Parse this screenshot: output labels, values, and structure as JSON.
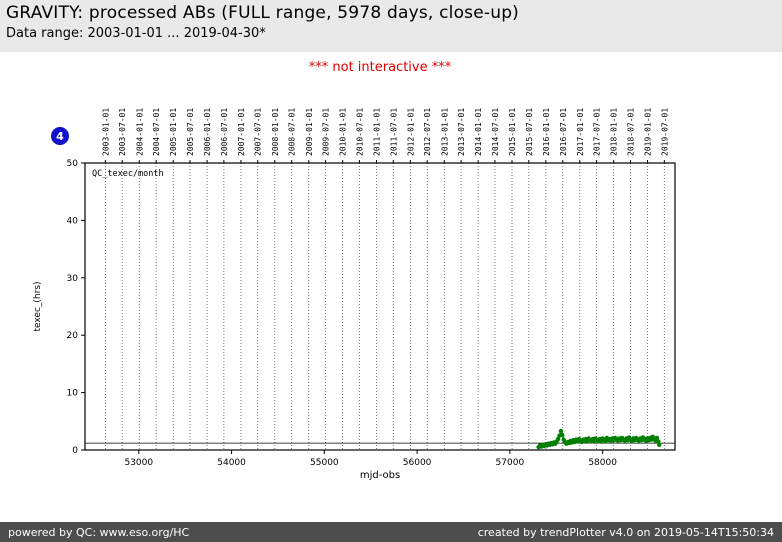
{
  "header": {
    "title": "GRAVITY: processed ABs (FULL range, 5978 days, close-up)",
    "subtitle": "Data range: 2003-01-01 ... 2019-04-30*"
  },
  "notice": "*** not interactive ***",
  "badge": {
    "label": "4",
    "color": "#1111cc"
  },
  "chart_data": {
    "type": "scatter",
    "legend": "QC_texec/month",
    "legend_position": "top-left-inside",
    "xlabel": "mjd-obs",
    "ylabel": "texec_(hrs)",
    "xlim": [
      52420,
      58780
    ],
    "ylim": [
      0,
      50
    ],
    "x_ticks": [
      53000,
      54000,
      55000,
      56000,
      57000,
      58000
    ],
    "y_ticks": [
      0,
      10,
      20,
      30,
      40,
      50
    ],
    "grid": "dotted vertical gridlines at each half-year date",
    "reference_line_y": 1.2,
    "top_axis_labels": [
      "2003-01-01",
      "2003-07-01",
      "2004-01-01",
      "2004-07-01",
      "2005-01-01",
      "2005-07-01",
      "2006-01-01",
      "2006-07-01",
      "2007-01-01",
      "2007-07-01",
      "2008-01-01",
      "2008-07-01",
      "2009-01-01",
      "2009-07-01",
      "2010-01-01",
      "2010-07-01",
      "2011-01-01",
      "2011-07-01",
      "2012-01-01",
      "2012-07-01",
      "2013-01-01",
      "2013-07-01",
      "2014-01-01",
      "2014-07-01",
      "2015-01-01",
      "2015-07-01",
      "2016-01-01",
      "2016-07-01",
      "2017-01-01",
      "2017-07-01",
      "2018-01-01",
      "2018-07-01",
      "2019-01-01",
      "2019-07-01"
    ],
    "series": [
      {
        "name": "QC_texec/month",
        "color": "#008000",
        "marker": "circle",
        "points": [
          [
            57310,
            0.5
          ],
          [
            57325,
            0.8
          ],
          [
            57340,
            0.6
          ],
          [
            57355,
            0.9
          ],
          [
            57370,
            0.7
          ],
          [
            57385,
            1.0
          ],
          [
            57400,
            0.8
          ],
          [
            57415,
            1.1
          ],
          [
            57430,
            0.9
          ],
          [
            57445,
            1.2
          ],
          [
            57460,
            1.0
          ],
          [
            57475,
            1.3
          ],
          [
            57490,
            1.1
          ],
          [
            57505,
            1.5
          ],
          [
            57520,
            1.9
          ],
          [
            57535,
            2.5
          ],
          [
            57550,
            3.3
          ],
          [
            57565,
            2.6
          ],
          [
            57580,
            1.8
          ],
          [
            57595,
            1.3
          ],
          [
            57610,
            1.1
          ],
          [
            57625,
            1.4
          ],
          [
            57640,
            1.2
          ],
          [
            57655,
            1.6
          ],
          [
            57670,
            1.3
          ],
          [
            57685,
            1.7
          ],
          [
            57700,
            1.4
          ],
          [
            57715,
            1.8
          ],
          [
            57730,
            1.5
          ],
          [
            57745,
            1.9
          ],
          [
            57760,
            1.6
          ],
          [
            57775,
            1.4
          ],
          [
            57790,
            1.8
          ],
          [
            57805,
            1.5
          ],
          [
            57820,
            1.9
          ],
          [
            57835,
            1.6
          ],
          [
            57850,
            2.0
          ],
          [
            57865,
            1.7
          ],
          [
            57880,
            1.5
          ],
          [
            57895,
            1.9
          ],
          [
            57910,
            1.6
          ],
          [
            57925,
            2.0
          ],
          [
            57940,
            1.7
          ],
          [
            57955,
            1.5
          ],
          [
            57970,
            1.9
          ],
          [
            57985,
            1.6
          ],
          [
            58000,
            2.0
          ],
          [
            58015,
            1.8
          ],
          [
            58030,
            1.5
          ],
          [
            58045,
            2.1
          ],
          [
            58060,
            1.7
          ],
          [
            58075,
            1.9
          ],
          [
            58090,
            1.6
          ],
          [
            58105,
            2.0
          ],
          [
            58120,
            1.7
          ],
          [
            58135,
            2.1
          ],
          [
            58150,
            1.8
          ],
          [
            58165,
            1.6
          ],
          [
            58180,
            2.0
          ],
          [
            58195,
            1.7
          ],
          [
            58210,
            2.1
          ],
          [
            58225,
            1.8
          ],
          [
            58240,
            1.6
          ],
          [
            58255,
            2.0
          ],
          [
            58270,
            1.7
          ],
          [
            58285,
            2.2
          ],
          [
            58300,
            1.8
          ],
          [
            58315,
            1.6
          ],
          [
            58330,
            2.0
          ],
          [
            58345,
            1.7
          ],
          [
            58360,
            2.1
          ],
          [
            58375,
            1.8
          ],
          [
            58390,
            1.6
          ],
          [
            58405,
            2.0
          ],
          [
            58420,
            1.7
          ],
          [
            58435,
            2.2
          ],
          [
            58450,
            1.9
          ],
          [
            58465,
            1.6
          ],
          [
            58480,
            2.0
          ],
          [
            58495,
            1.7
          ],
          [
            58510,
            2.1
          ],
          [
            58525,
            1.8
          ],
          [
            58540,
            2.3
          ],
          [
            58555,
            1.9
          ],
          [
            58570,
            1.6
          ],
          [
            58585,
            2.1
          ],
          [
            58600,
            1.5
          ],
          [
            58610,
            0.9
          ]
        ]
      }
    ]
  },
  "footer": {
    "left": "powered by QC: www.eso.org/HC",
    "right": "created by trendPlotter v4.0 on 2019-05-14T15:50:34"
  }
}
